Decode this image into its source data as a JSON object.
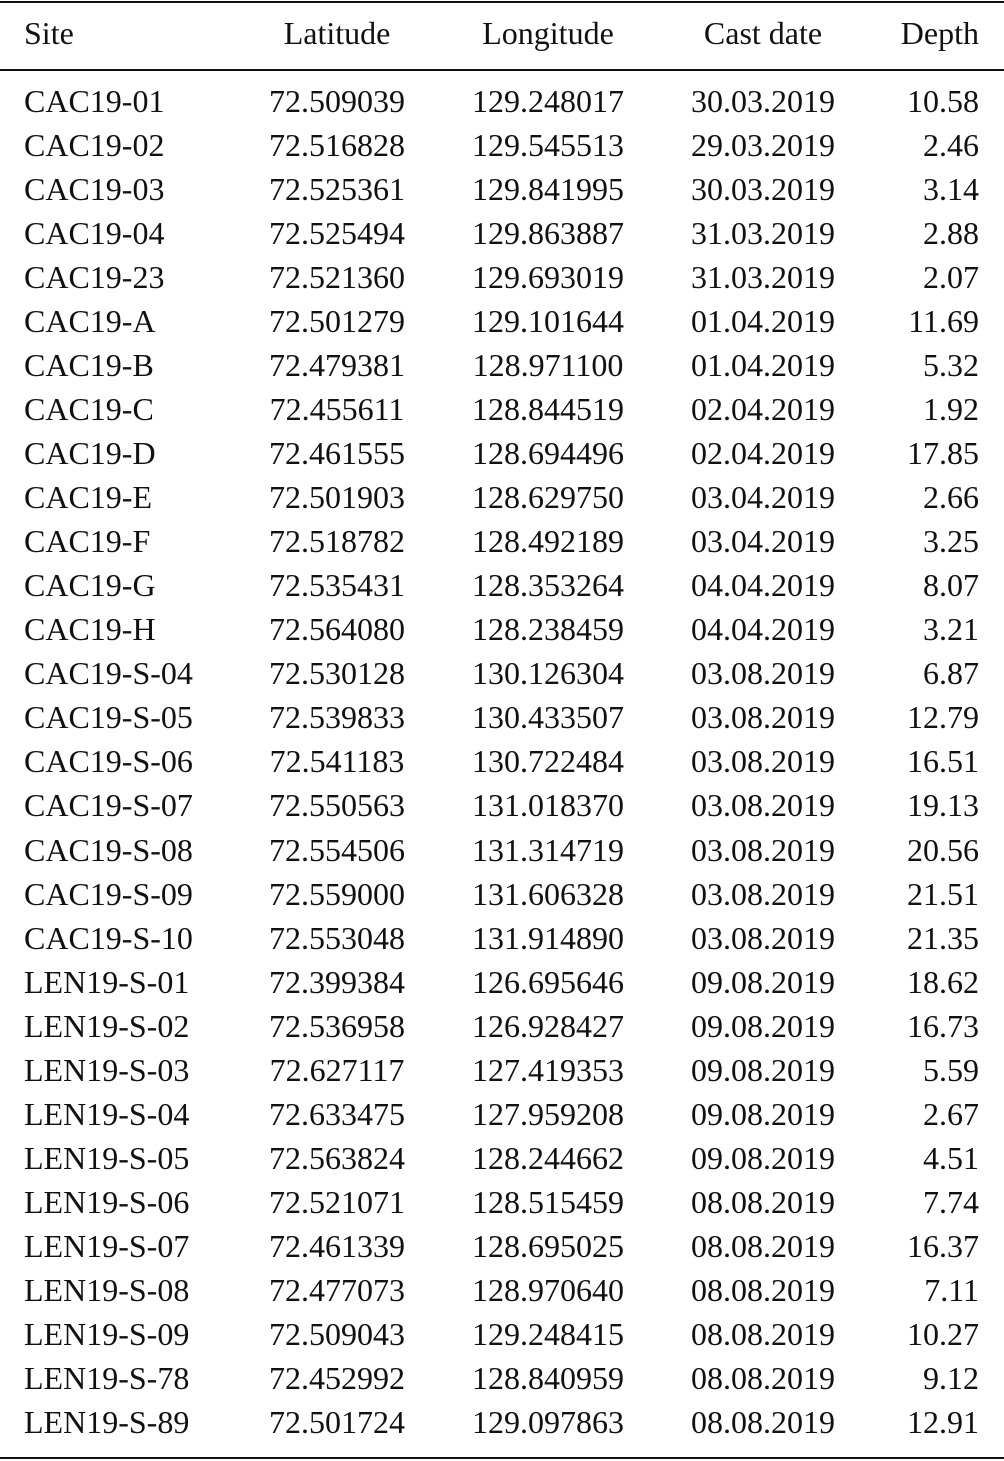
{
  "table": {
    "header": [
      "Site",
      "Latitude",
      "Longitude",
      "Cast date",
      "Depth"
    ],
    "rows": [
      [
        "CAC19-01",
        "72.509039",
        "129.248017",
        "30.03.2019",
        "10.58"
      ],
      [
        "CAC19-02",
        "72.516828",
        "129.545513",
        "29.03.2019",
        "2.46"
      ],
      [
        "CAC19-03",
        "72.525361",
        "129.841995",
        "30.03.2019",
        "3.14"
      ],
      [
        "CAC19-04",
        "72.525494",
        "129.863887",
        "31.03.2019",
        "2.88"
      ],
      [
        "CAC19-23",
        "72.521360",
        "129.693019",
        "31.03.2019",
        "2.07"
      ],
      [
        "CAC19-A",
        "72.501279",
        "129.101644",
        "01.04.2019",
        "11.69"
      ],
      [
        "CAC19-B",
        "72.479381",
        "128.971100",
        "01.04.2019",
        "5.32"
      ],
      [
        "CAC19-C",
        "72.455611",
        "128.844519",
        "02.04.2019",
        "1.92"
      ],
      [
        "CAC19-D",
        "72.461555",
        "128.694496",
        "02.04.2019",
        "17.85"
      ],
      [
        "CAC19-E",
        "72.501903",
        "128.629750",
        "03.04.2019",
        "2.66"
      ],
      [
        "CAC19-F",
        "72.518782",
        "128.492189",
        "03.04.2019",
        "3.25"
      ],
      [
        "CAC19-G",
        "72.535431",
        "128.353264",
        "04.04.2019",
        "8.07"
      ],
      [
        "CAC19-H",
        "72.564080",
        "128.238459",
        "04.04.2019",
        "3.21"
      ],
      [
        "CAC19-S-04",
        "72.530128",
        "130.126304",
        "03.08.2019",
        "6.87"
      ],
      [
        "CAC19-S-05",
        "72.539833",
        "130.433507",
        "03.08.2019",
        "12.79"
      ],
      [
        "CAC19-S-06",
        "72.541183",
        "130.722484",
        "03.08.2019",
        "16.51"
      ],
      [
        "CAC19-S-07",
        "72.550563",
        "131.018370",
        "03.08.2019",
        "19.13"
      ],
      [
        "CAC19-S-08",
        "72.554506",
        "131.314719",
        "03.08.2019",
        "20.56"
      ],
      [
        "CAC19-S-09",
        "72.559000",
        "131.606328",
        "03.08.2019",
        "21.51"
      ],
      [
        "CAC19-S-10",
        "72.553048",
        "131.914890",
        "03.08.2019",
        "21.35"
      ],
      [
        "LEN19-S-01",
        "72.399384",
        "126.695646",
        "09.08.2019",
        "18.62"
      ],
      [
        "LEN19-S-02",
        "72.536958",
        "126.928427",
        "09.08.2019",
        "16.73"
      ],
      [
        "LEN19-S-03",
        "72.627117",
        "127.419353",
        "09.08.2019",
        "5.59"
      ],
      [
        "LEN19-S-04",
        "72.633475",
        "127.959208",
        "09.08.2019",
        "2.67"
      ],
      [
        "LEN19-S-05",
        "72.563824",
        "128.244662",
        "09.08.2019",
        "4.51"
      ],
      [
        "LEN19-S-06",
        "72.521071",
        "128.515459",
        "08.08.2019",
        "7.74"
      ],
      [
        "LEN19-S-07",
        "72.461339",
        "128.695025",
        "08.08.2019",
        "16.37"
      ],
      [
        "LEN19-S-08",
        "72.477073",
        "128.970640",
        "08.08.2019",
        "7.11"
      ],
      [
        "LEN19-S-09",
        "72.509043",
        "129.248415",
        "08.08.2019",
        "10.27"
      ],
      [
        "LEN19-S-78",
        "72.452992",
        "128.840959",
        "08.08.2019",
        "9.12"
      ],
      [
        "LEN19-S-89",
        "72.501724",
        "129.097863",
        "08.08.2019",
        "12.91"
      ]
    ]
  }
}
